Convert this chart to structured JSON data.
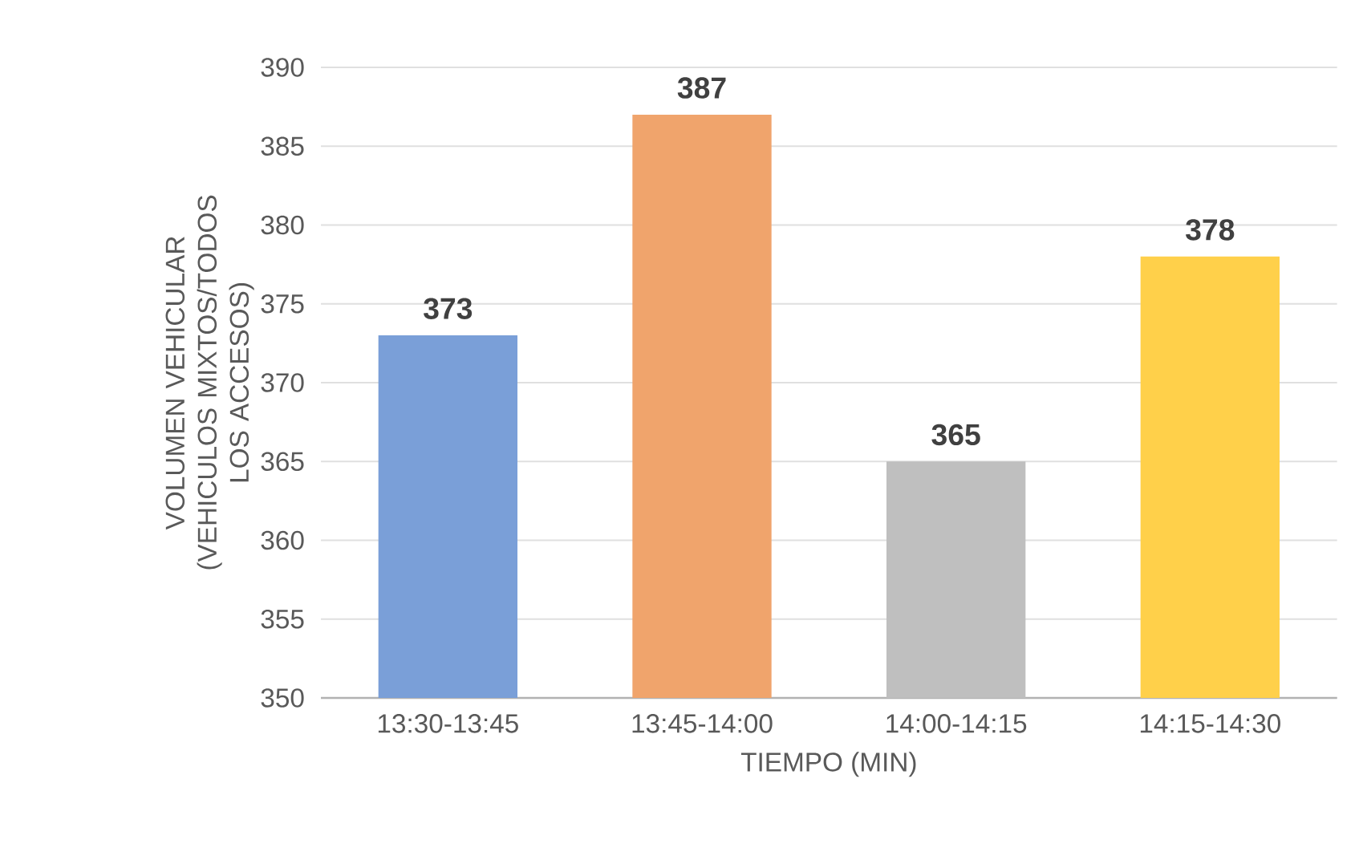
{
  "chart_data": {
    "type": "bar",
    "xlabel": "TIEMPO (MIN)",
    "ylabel": "VOLUMEN VEHICULAR (VEHICULOS MIXTOS/TODOS LOS ACCESOS)",
    "categories": [
      "13:30-13:45",
      "13:45-14:00",
      "14:00-14:15",
      "14:15-14:30"
    ],
    "values": [
      373,
      387,
      365,
      378
    ],
    "colors": [
      "#7a9fd8",
      "#f0a46c",
      "#bfbfbf",
      "#ffd04a"
    ],
    "ylim": [
      350,
      390
    ],
    "yticks": [
      350,
      355,
      360,
      365,
      370,
      375,
      380,
      385,
      390
    ],
    "grid": "y",
    "data_labels": true
  }
}
